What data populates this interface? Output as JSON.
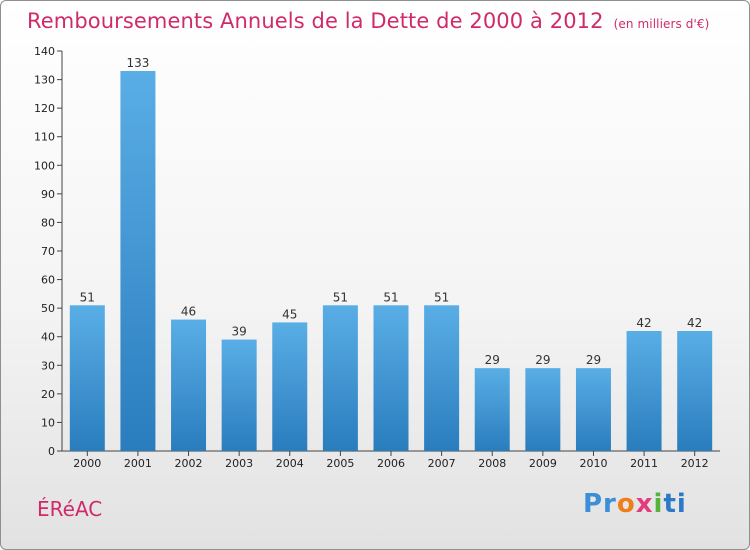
{
  "chart_data": {
    "type": "bar",
    "title": "Remboursements Annuels de la Dette de 2000 à 2012",
    "subtitle": "(en milliers d'€)",
    "categories": [
      "2000",
      "2001",
      "2002",
      "2003",
      "2004",
      "2005",
      "2006",
      "2007",
      "2008",
      "2009",
      "2010",
      "2011",
      "2012"
    ],
    "values": [
      51,
      133,
      46,
      39,
      45,
      51,
      51,
      51,
      29,
      29,
      29,
      42,
      42
    ],
    "ylim": [
      0,
      140
    ],
    "yticks": [
      0,
      10,
      20,
      30,
      40,
      50,
      60,
      70,
      80,
      90,
      100,
      110,
      120,
      130,
      140
    ],
    "grid": false,
    "bar_color": "#3b97d6"
  },
  "footer": {
    "commune": "ÉRéAC",
    "logo": [
      "Pr",
      "o",
      "x",
      "i",
      "ti"
    ]
  }
}
